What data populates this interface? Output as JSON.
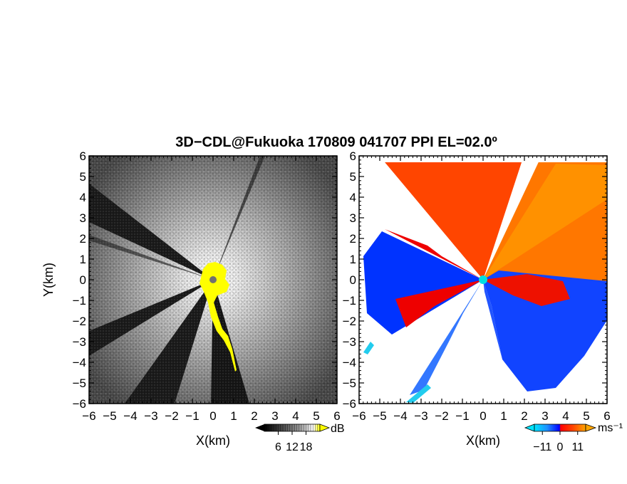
{
  "title": "3D−CDL@Fukuoka 170809 041707 PPI EL=02.0º",
  "chart_data": [
    {
      "type": "heatmap",
      "field": "signal intensity",
      "xlabel": "X(km)",
      "ylabel": "Y(km)",
      "xlim": [
        -6,
        6
      ],
      "ylim": [
        -6,
        6
      ],
      "x_ticks": [
        "−6",
        "−5",
        "−4",
        "−3",
        "−2",
        "−1",
        "0",
        "1",
        "2",
        "3",
        "4",
        "5",
        "6"
      ],
      "y_ticks": [
        "6",
        "5",
        "4",
        "3",
        "2",
        "1",
        "0",
        "−1",
        "−2",
        "−3",
        "−4",
        "−5",
        "−6"
      ],
      "colorbar": {
        "unit": "dB",
        "ticks": [
          "6",
          "12",
          "18"
        ],
        "range": [
          0,
          24
        ],
        "colors": [
          "#000000",
          "#404040",
          "#808080",
          "#c0c0c0",
          "#ffffff",
          "#ffff00"
        ]
      },
      "radar_center": [
        0,
        0
      ],
      "blocked_sector_color": "#1a1a1a",
      "clutter_color": "#ffff00"
    },
    {
      "type": "heatmap",
      "field": "Doppler velocity",
      "xlabel": "X(km)",
      "ylabel": "",
      "xlim": [
        -6,
        6
      ],
      "ylim": [
        -6,
        6
      ],
      "x_ticks": [
        "−6",
        "−5",
        "−4",
        "−3",
        "−2",
        "−1",
        "0",
        "1",
        "2",
        "3",
        "4",
        "5",
        "6"
      ],
      "y_ticks": [
        "6",
        "5",
        "4",
        "3",
        "2",
        "1",
        "0",
        "−1",
        "−2",
        "−3",
        "−4",
        "−5",
        "−6"
      ],
      "colorbar": {
        "unit": "ms⁻¹",
        "ticks": [
          "−11",
          "0",
          "11"
        ],
        "range": [
          -16,
          16
        ],
        "colors": [
          "#00e5ff",
          "#1e90ff",
          "#0000ff",
          "#ff0000",
          "#ff4500",
          "#ff8c00",
          "#ffa500"
        ]
      },
      "radar_center": [
        0,
        0
      ],
      "center_marker_color": "#00e0e0"
    }
  ]
}
